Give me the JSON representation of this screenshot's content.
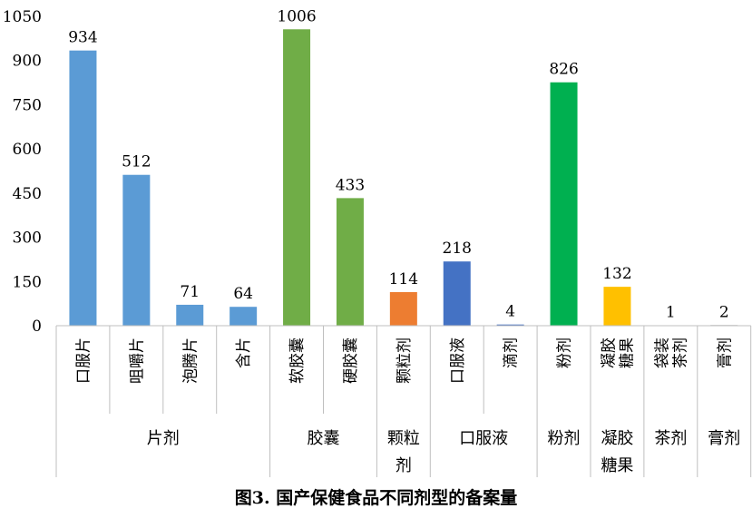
{
  "caption": "图3. 国产保健食品不同剂型的备案量",
  "chart_data": {
    "type": "bar",
    "title": "图3. 国产保健食品不同剂型的备案量",
    "xlabel": "",
    "ylabel": "",
    "ylim": [
      0,
      1050
    ],
    "yticks": [
      0,
      150,
      300,
      450,
      600,
      750,
      900,
      1050
    ],
    "grid": false,
    "legend": "none",
    "categories": [
      {
        "label": "口服片",
        "group": "片剂",
        "value": 934,
        "color": "#5B9BD5"
      },
      {
        "label": "咀嚼片",
        "group": "片剂",
        "value": 512,
        "color": "#5B9BD5"
      },
      {
        "label": "泡腾片",
        "group": "片剂",
        "value": 71,
        "color": "#5B9BD5"
      },
      {
        "label": "含片",
        "group": "片剂",
        "value": 64,
        "color": "#5B9BD5"
      },
      {
        "label": "软胶囊",
        "group": "胶囊",
        "value": 1006,
        "color": "#70AD47"
      },
      {
        "label": "硬胶囊",
        "group": "胶囊",
        "value": 433,
        "color": "#70AD47"
      },
      {
        "label": "颗粒剂",
        "group": "颗粒剂",
        "value": 114,
        "color": "#ED7D31"
      },
      {
        "label": "口服液",
        "group": "口服液",
        "value": 218,
        "color": "#4472C4"
      },
      {
        "label": "滴剂",
        "group": "口服液",
        "value": 4,
        "color": "#4472C4"
      },
      {
        "label": "粉剂",
        "group": "粉剂",
        "value": 826,
        "color": "#00B050"
      },
      {
        "label": "凝胶糖果",
        "group": "凝胶糖果",
        "value": 132,
        "color": "#FFC000"
      },
      {
        "label": "袋装茶剂",
        "group": "茶剂",
        "value": 1,
        "color": "#7F7F7F"
      },
      {
        "label": "膏剂",
        "group": "膏剂",
        "value": 2,
        "color": "#7F7F7F"
      }
    ],
    "groups": [
      {
        "name": "片剂",
        "label_lines": [
          "片剂"
        ],
        "count": 4
      },
      {
        "name": "胶囊",
        "label_lines": [
          "胶囊"
        ],
        "count": 2
      },
      {
        "name": "颗粒剂",
        "label_lines": [
          "颗粒",
          "剂"
        ],
        "count": 1
      },
      {
        "name": "口服液",
        "label_lines": [
          "口服液"
        ],
        "count": 2
      },
      {
        "name": "粉剂",
        "label_lines": [
          "粉剂"
        ],
        "count": 1
      },
      {
        "name": "凝胶糖果",
        "label_lines": [
          "凝胶",
          "糖果"
        ],
        "count": 1
      },
      {
        "name": "茶剂",
        "label_lines": [
          "茶剂"
        ],
        "count": 1
      },
      {
        "name": "膏剂",
        "label_lines": [
          "膏剂"
        ],
        "count": 1
      }
    ]
  }
}
